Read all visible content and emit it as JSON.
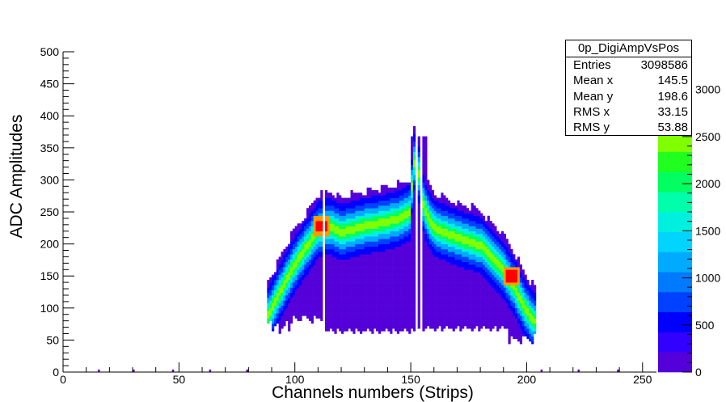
{
  "chart_data": {
    "type": "heatmap",
    "title": "",
    "xlabel": "Channels numbers (Strips)",
    "ylabel": "ADC  Amplitudes",
    "xlim": [
      0,
      256
    ],
    "ylim": [
      0,
      500
    ],
    "zlim": [
      0,
      3400
    ],
    "x_ticks": [
      0,
      50,
      100,
      150,
      200,
      250
    ],
    "y_ticks": [
      0,
      50,
      100,
      150,
      200,
      250,
      300,
      350,
      400,
      450,
      500
    ],
    "z_ticks": [
      0,
      500,
      1000,
      1500,
      2000,
      2500,
      3000
    ],
    "x_range_filled": [
      88,
      204
    ],
    "gap_channels": [
      [
        112,
        113
      ],
      [
        152,
        153
      ],
      [
        154,
        155
      ]
    ],
    "ridge_profile": {
      "x": [
        88,
        95,
        100,
        105,
        110,
        115,
        120,
        130,
        140,
        145,
        150,
        151,
        153,
        156,
        160,
        170,
        180,
        190,
        195,
        200,
        203
      ],
      "y": [
        85,
        135,
        168,
        195,
        222,
        228,
        218,
        228,
        235,
        240,
        250,
        330,
        320,
        252,
        225,
        210,
        198,
        160,
        130,
        95,
        80
      ]
    },
    "hot_spots": [
      {
        "x": 111,
        "y": 226
      },
      {
        "x": 193,
        "y": 148
      }
    ],
    "stats": {
      "name": "0p_DigiAmpVsPos",
      "entries": "3098586",
      "mean_x": "145.5",
      "mean_y": "198.6",
      "rms_x": "33.15",
      "rms_y": "53.88"
    },
    "palette": [
      "#5400d8",
      "#3200ff",
      "#0000ff",
      "#0040ff",
      "#007aff",
      "#00aaff",
      "#00d4ff",
      "#00f0e0",
      "#00ffaa",
      "#00ff60",
      "#20ff20",
      "#80ff00",
      "#c8ff00",
      "#ffff00",
      "#ff9a00",
      "#ff0000"
    ]
  },
  "ui": {
    "stats_labels": {
      "entries": "Entries",
      "mean_x": "Mean x",
      "mean_y": "Mean y",
      "rms_x": "RMS x",
      "rms_y": "RMS y"
    }
  }
}
